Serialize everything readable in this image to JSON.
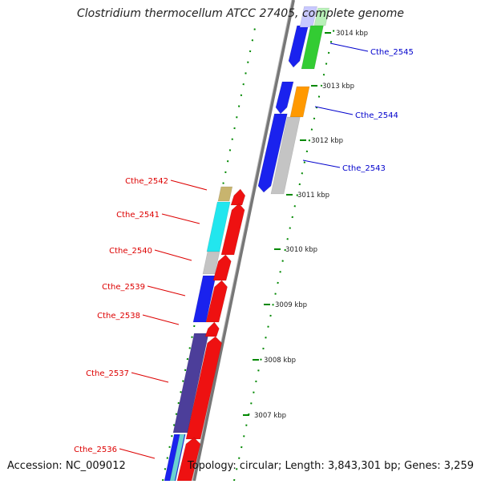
{
  "title": "Clostridium thermocellum ATCC 27405, complete genome",
  "footer": {
    "accession": "Accession: NC_009012",
    "summary": "Topology: circular; Length: 3,843,301 bp; Genes: 3,259"
  },
  "colors": {
    "label_left": "#dd0000",
    "label_right": "#0000cc",
    "dots": "#008800",
    "backbone": "#888888"
  },
  "kbp_ticks": [
    {
      "label": "3014 kbp"
    },
    {
      "label": "3013 kbp"
    },
    {
      "label": "3012 kbp"
    },
    {
      "label": "3011 kbp"
    },
    {
      "label": "3010 kbp"
    },
    {
      "label": "3009 kbp"
    },
    {
      "label": "3008 kbp"
    },
    {
      "label": "3007 kbp"
    }
  ],
  "genes_left": [
    {
      "name": "Cthe_2542"
    },
    {
      "name": "Cthe_2541"
    },
    {
      "name": "Cthe_2540"
    },
    {
      "name": "Cthe_2539"
    },
    {
      "name": "Cthe_2538"
    },
    {
      "name": "Cthe_2537"
    },
    {
      "name": "Cthe_2536"
    }
  ],
  "genes_right": [
    {
      "name": "Cthe_2545"
    },
    {
      "name": "Cthe_2544"
    },
    {
      "name": "Cthe_2543"
    }
  ]
}
